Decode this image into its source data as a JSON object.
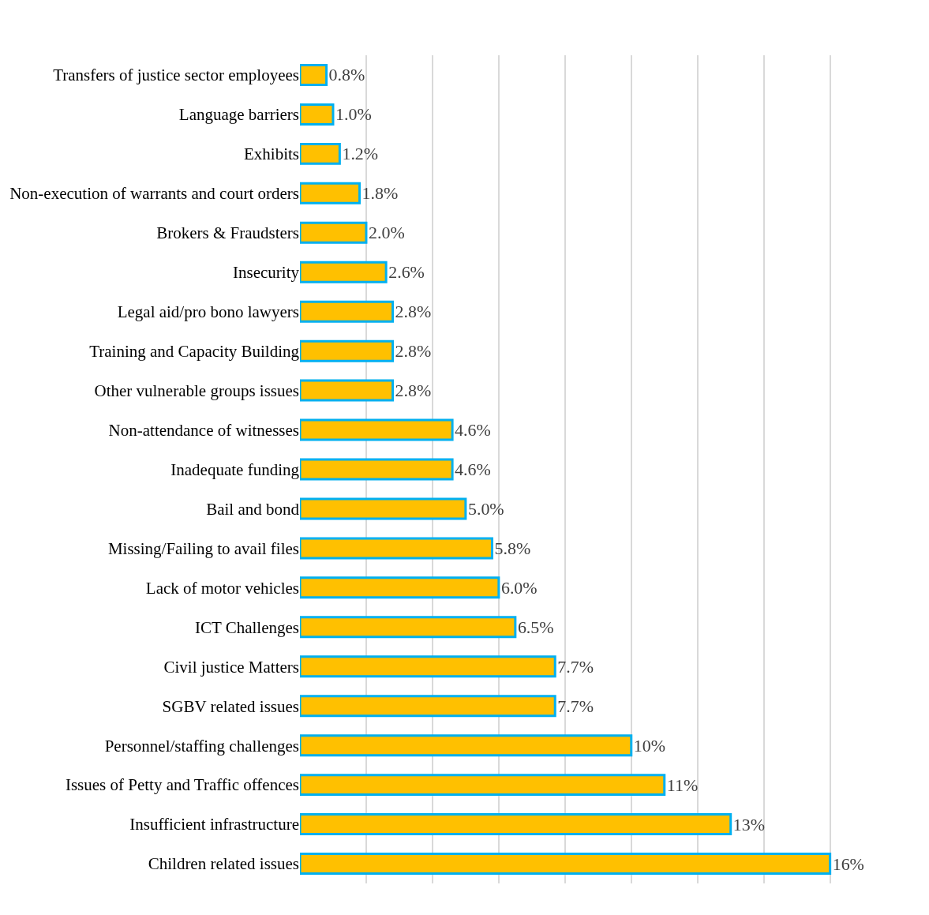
{
  "chart_data": {
    "type": "bar",
    "orientation": "horizontal",
    "categories": [
      "Transfers of justice sector employees",
      "Language barriers",
      "Exhibits",
      "Non-execution of warrants and court orders",
      "Brokers & Fraudsters",
      "Insecurity",
      "Legal aid/pro bono lawyers",
      "Training and Capacity Building",
      "Other vulnerable groups issues",
      "Non-attendance of witnesses",
      "Inadequate funding",
      "Bail and bond",
      "Missing/Failing to avail files",
      "Lack of motor vehicles",
      "ICT Challenges",
      "Civil justice Matters",
      "SGBV related issues",
      "Personnel/staffing challenges",
      "Issues of Petty and Traffic offences",
      "Insufficient infrastructure",
      "Children related issues"
    ],
    "values": [
      0.8,
      1.0,
      1.2,
      1.8,
      2.0,
      2.6,
      2.8,
      2.8,
      2.8,
      4.6,
      4.6,
      5.0,
      5.8,
      6.0,
      6.5,
      7.7,
      7.7,
      10,
      11,
      13,
      16
    ],
    "value_labels": [
      "0.8%",
      "1.0%",
      "1.2%",
      "1.8%",
      "2.0%",
      "2.6%",
      "2.8%",
      "2.8%",
      "2.8%",
      "4.6%",
      "4.6%",
      "5.0%",
      "5.8%",
      "6.0%",
      "6.5%",
      "7.7%",
      "7.7%",
      "10%",
      "11%",
      "13%",
      "16%"
    ],
    "color": "#ffc000",
    "tick_labels": "y",
    "grid": "x",
    "legend": false
  }
}
